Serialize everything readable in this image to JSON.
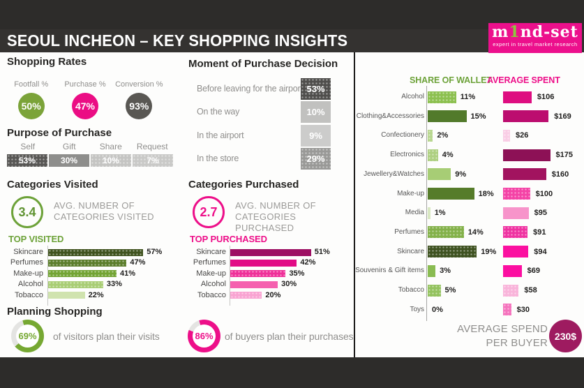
{
  "header": {
    "title": "SEOUL INCHEON – KEY SHOPPING INSIGHTS",
    "logo": {
      "brand_pre": "m",
      "brand_one": "1",
      "brand_post": "nd-set",
      "tagline": "expert in travel market research",
      "bg_color": "#ec108c",
      "digit_color": "#8dc63f"
    }
  },
  "sections": {
    "left": {
      "categories_visited_heading": "Categories Visited",
      "avg_visited_value": "3.4",
      "avg_visited_caption": "AVG. NUMBER OF CATEGORIES VISITED"
    },
    "middle": {
      "categories_purchased_heading": "Categories Purchased",
      "avg_purchased_value": "2.7",
      "avg_purchased_caption": "AVG. NUMBER OF CATEGORIES PURCHASED"
    },
    "right": {
      "avg_spend_caption": "AVERAGE SPEND PER BUYER",
      "avg_spend_value": "230$",
      "avg_spend_circle_color": "#9e1b60"
    }
  },
  "chart_data": [
    {
      "id": "shopping_rates",
      "type": "bar",
      "title": "Shopping Rates",
      "unit": "%",
      "categories": [
        "Footfall %",
        "Purchase %",
        "Conversion %"
      ],
      "values": [
        50,
        47,
        93
      ],
      "colors": [
        "#7ba339",
        "#eb0d84",
        "#595753"
      ]
    },
    {
      "id": "purpose_of_purchase",
      "type": "bar",
      "title": "Purpose of Purchase",
      "unit": "%",
      "categories": [
        "Self",
        "Gift",
        "Share",
        "Request"
      ],
      "values": [
        53,
        30,
        10,
        7
      ],
      "colors": [
        "#575654",
        "#8e8e8c",
        "#c4c4c2",
        "#c9c9c7"
      ],
      "dots": [
        true,
        false,
        true,
        true
      ]
    },
    {
      "id": "moment_of_purchase_decision",
      "type": "bar",
      "title": "Moment of Purchase Decision",
      "unit": "%",
      "categories": [
        "Before leaving for the airport",
        "On the way",
        "In the airport",
        "In the store"
      ],
      "values": [
        53,
        10,
        9,
        29
      ],
      "colors": [
        "#4f4e4c",
        "#c1c1bf",
        "#cccccb",
        "#999997"
      ],
      "dots": [
        true,
        false,
        false,
        true
      ]
    },
    {
      "id": "top_visited",
      "type": "bar",
      "title": "TOP VISITED",
      "unit": "%",
      "xlim": [
        0,
        60
      ],
      "categories": [
        "Skincare",
        "Perfumes",
        "Make-up",
        "Alcohol",
        "Tobacco"
      ],
      "values": [
        57,
        47,
        41,
        33,
        22
      ],
      "colors": [
        "#40531f",
        "#5c7e2c",
        "#73a434",
        "#a9cd74",
        "#d0e3af"
      ],
      "dots": [
        true,
        true,
        true,
        true,
        false
      ]
    },
    {
      "id": "top_purchased",
      "type": "bar",
      "title": "TOP PURCHASED",
      "unit": "%",
      "xlim": [
        0,
        60
      ],
      "categories": [
        "Skincare",
        "Perfumes",
        "Make-up",
        "Alcohol",
        "Tobacco"
      ],
      "values": [
        51,
        42,
        35,
        30,
        20
      ],
      "colors": [
        "#9d1063",
        "#e20b86",
        "#ef3099",
        "#f560af",
        "#f9a3d2"
      ],
      "dots": [
        false,
        false,
        true,
        false,
        true
      ]
    },
    {
      "id": "planning_visits",
      "type": "pie",
      "title": "Planning Shopping",
      "values": [
        69,
        31
      ],
      "label": "69%",
      "caption": "of visitors plan their visits",
      "color": "#76a832"
    },
    {
      "id": "planning_purchases",
      "type": "pie",
      "values": [
        86,
        14
      ],
      "label": "86%",
      "caption": "of buyers plan their purchases",
      "color": "#ed0f89"
    },
    {
      "id": "wallet",
      "type": "bar",
      "categories": [
        "Alcohol",
        "Clothing&Accessories",
        "Confectionery",
        "Electronics",
        "Jewellery&Watches",
        "Make-up",
        "Media",
        "Perfumes",
        "Skincare",
        "Souvenirs & Gift items",
        "Tobacco",
        "Toys"
      ],
      "series": [
        {
          "name": "SHARE OF WALLET",
          "unit": "%",
          "xlim": [
            0,
            20
          ],
          "values": [
            11,
            15,
            2,
            4,
            9,
            18,
            1,
            14,
            19,
            3,
            5,
            0
          ],
          "colors": [
            "#8cc04f",
            "#527a2b",
            "#b8d78f",
            "#aed081",
            "#a7cd75",
            "#567c2a",
            "#d9e8c2",
            "#83b149",
            "#3e5220",
            "#8abc52",
            "#93c25e",
            "#cfe3ae"
          ],
          "dots": [
            true,
            false,
            true,
            true,
            false,
            false,
            false,
            true,
            true,
            false,
            true,
            false
          ]
        },
        {
          "name": "AVERAGE SPENT",
          "unit_prefix": "$",
          "xlim": [
            0,
            180
          ],
          "values": [
            106,
            169,
            26,
            175,
            160,
            100,
            95,
            91,
            94,
            69,
            58,
            30
          ],
          "colors": [
            "#de0d80",
            "#bc0d6f",
            "#f9cde5",
            "#8d1156",
            "#a2135f",
            "#f442a6",
            "#f794ca",
            "#ef32a1",
            "#fb10a0",
            "#fc0ea1",
            "#f9b4da",
            "#f573bd"
          ],
          "dots": [
            false,
            false,
            true,
            false,
            false,
            true,
            false,
            true,
            false,
            false,
            true,
            true
          ]
        }
      ]
    }
  ]
}
